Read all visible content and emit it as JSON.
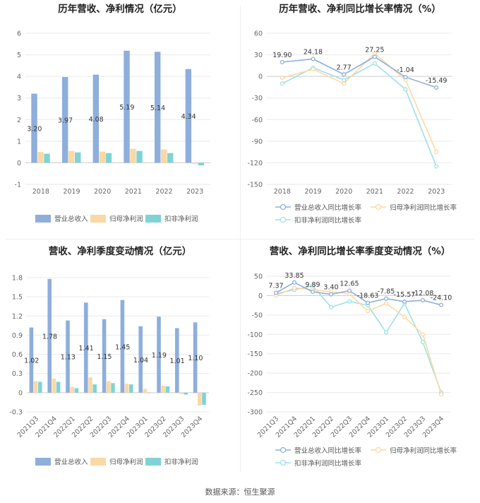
{
  "source_text": "数据来源：恒生聚源",
  "colors": {
    "revenue": "#8eaedc",
    "net_profit": "#fbd9a4",
    "deducted_profit": "#7fd3d6",
    "revenue_line": "#8eaedc",
    "net_line": "#fbd9a4",
    "deducted_line": "#9ee0e6",
    "grid": "#e9e9e9",
    "axis_text": "#666666"
  },
  "chart_data": [
    {
      "id": "annual-bars",
      "type": "bar",
      "title": "历年营收、净利情况（亿元）",
      "categories": [
        "2018",
        "2019",
        "2020",
        "2021",
        "2022",
        "2023"
      ],
      "series": [
        {
          "name": "营业总收入",
          "values": [
            3.2,
            3.97,
            4.08,
            5.19,
            5.14,
            4.34
          ]
        },
        {
          "name": "归母净利润",
          "values": [
            0.5,
            0.55,
            0.52,
            0.65,
            0.62,
            -0.05
          ]
        },
        {
          "name": "扣非净利润",
          "values": [
            0.42,
            0.48,
            0.45,
            0.55,
            0.45,
            -0.12
          ]
        }
      ],
      "data_labels": [
        "3.20",
        "3.97",
        "4.08",
        "5.19",
        "5.14",
        "4.34"
      ],
      "ylim": [
        -1,
        6
      ],
      "yticks": [
        -1,
        0,
        1,
        2,
        3,
        4,
        5,
        6
      ],
      "ytick_labels": [
        "-1",
        "0",
        "1",
        "2",
        "3",
        "4",
        "5",
        "6"
      ],
      "legend": [
        "营业总收入",
        "归母净利润",
        "扣非净利润"
      ],
      "legend_position": "bottom",
      "grid": true
    },
    {
      "id": "annual-growth",
      "type": "line",
      "title": "历年营收、净利同比增长率情况（%）",
      "categories": [
        "2018",
        "2019",
        "2020",
        "2021",
        "2022",
        "2023"
      ],
      "series": [
        {
          "name": "营业总收入同比增长率",
          "values": [
            19.9,
            24.18,
            2.77,
            27.25,
            -1.04,
            -15.49
          ]
        },
        {
          "name": "归母净利润同比增长率",
          "values": [
            -2,
            10,
            -10,
            32,
            -5,
            -105
          ]
        },
        {
          "name": "扣非净利润同比增长率",
          "values": [
            -10,
            12,
            -5,
            18,
            -18,
            -125
          ]
        }
      ],
      "data_labels": [
        "19.90",
        "24.18",
        "2.77",
        "27.25",
        "-1.04",
        "-15.49"
      ],
      "ylim": [
        -150,
        60
      ],
      "yticks": [
        -150,
        -120,
        -90,
        -60,
        -30,
        0,
        30,
        60
      ],
      "ytick_labels": [
        "-150",
        "-120",
        "-90",
        "-60",
        "-30",
        "0",
        "30",
        "60"
      ],
      "legend": [
        "营业总收入同比增长率",
        "归母净利润同比增长率",
        "扣非净利润同比增长率"
      ],
      "legend_position": "bottom",
      "grid": true
    },
    {
      "id": "quarterly-bars",
      "type": "bar",
      "title": "营收、净利季度变动情况（亿元）",
      "categories": [
        "2021Q3",
        "2021Q4",
        "2022Q1",
        "2022Q2",
        "2022Q3",
        "2022Q4",
        "2023Q1",
        "2023Q2",
        "2023Q3",
        "2023Q4"
      ],
      "series": [
        {
          "name": "营业总收入",
          "values": [
            1.02,
            1.78,
            1.13,
            1.41,
            1.15,
            1.45,
            1.04,
            1.19,
            1.01,
            1.1
          ]
        },
        {
          "name": "归母净利润",
          "values": [
            0.18,
            0.22,
            0.09,
            0.24,
            0.18,
            0.14,
            0.06,
            0.11,
            -0.02,
            -0.2
          ]
        },
        {
          "name": "扣非净利润",
          "values": [
            0.17,
            0.17,
            0.07,
            0.13,
            0.15,
            0.13,
            0.0,
            0.1,
            -0.03,
            -0.19
          ]
        }
      ],
      "data_labels": [
        "1.02",
        "1.78",
        "1.13",
        "1.41",
        "1.15",
        "1.45",
        "1.04",
        "1.19",
        "1.01",
        "1.10"
      ],
      "ylim": [
        -0.3,
        1.8
      ],
      "yticks": [
        -0.3,
        0,
        0.3,
        0.6,
        0.9,
        1.2,
        1.5,
        1.8
      ],
      "ytick_labels": [
        "-0.3",
        "0",
        "0.3",
        "0.6",
        "0.9",
        "1.2",
        "1.5",
        "1.8"
      ],
      "legend": [
        "营业总收入",
        "归母净利润",
        "扣非净利润"
      ],
      "legend_position": "bottom",
      "grid": true
    },
    {
      "id": "quarterly-growth",
      "type": "line",
      "title": "营收、净利同比增长率季度变动情况（%）",
      "categories": [
        "2021Q3",
        "2021Q4",
        "2022Q1",
        "2022Q2",
        "2022Q3",
        "2022Q4",
        "2023Q1",
        "2023Q2",
        "2023Q3",
        "2023Q4"
      ],
      "series": [
        {
          "name": "营业总收入同比增长率",
          "values": [
            7.37,
            33.85,
            9.89,
            3.4,
            12.65,
            -18.63,
            -7.85,
            -15.57,
            -12.08,
            -24.1
          ]
        },
        {
          "name": "归母净利润同比增长率",
          "values": [
            0,
            20,
            15,
            10,
            5,
            -40,
            -20,
            -55,
            -100,
            -255
          ]
        },
        {
          "name": "扣非净利润同比增长率",
          "values": [
            5,
            15,
            25,
            -30,
            -15,
            -25,
            -95,
            -20,
            -120,
            -250
          ]
        }
      ],
      "data_labels": [
        "7.37",
        "33.85",
        "9.89",
        "3.40",
        "12.65",
        "-18.63",
        "-7.85",
        "-15.57",
        "-12.08",
        "-24.10"
      ],
      "ylim": [
        -300,
        50
      ],
      "yticks": [
        -300,
        -250,
        -200,
        -150,
        -100,
        -50,
        0,
        50
      ],
      "ytick_labels": [
        "-300",
        "-250",
        "-200",
        "-150",
        "-100",
        "-50",
        "0",
        "50"
      ],
      "legend": [
        "营业总收入同比增长率",
        "归母净利润同比增长率",
        "扣非净利润同比增长率"
      ],
      "legend_position": "bottom",
      "grid": true
    }
  ]
}
